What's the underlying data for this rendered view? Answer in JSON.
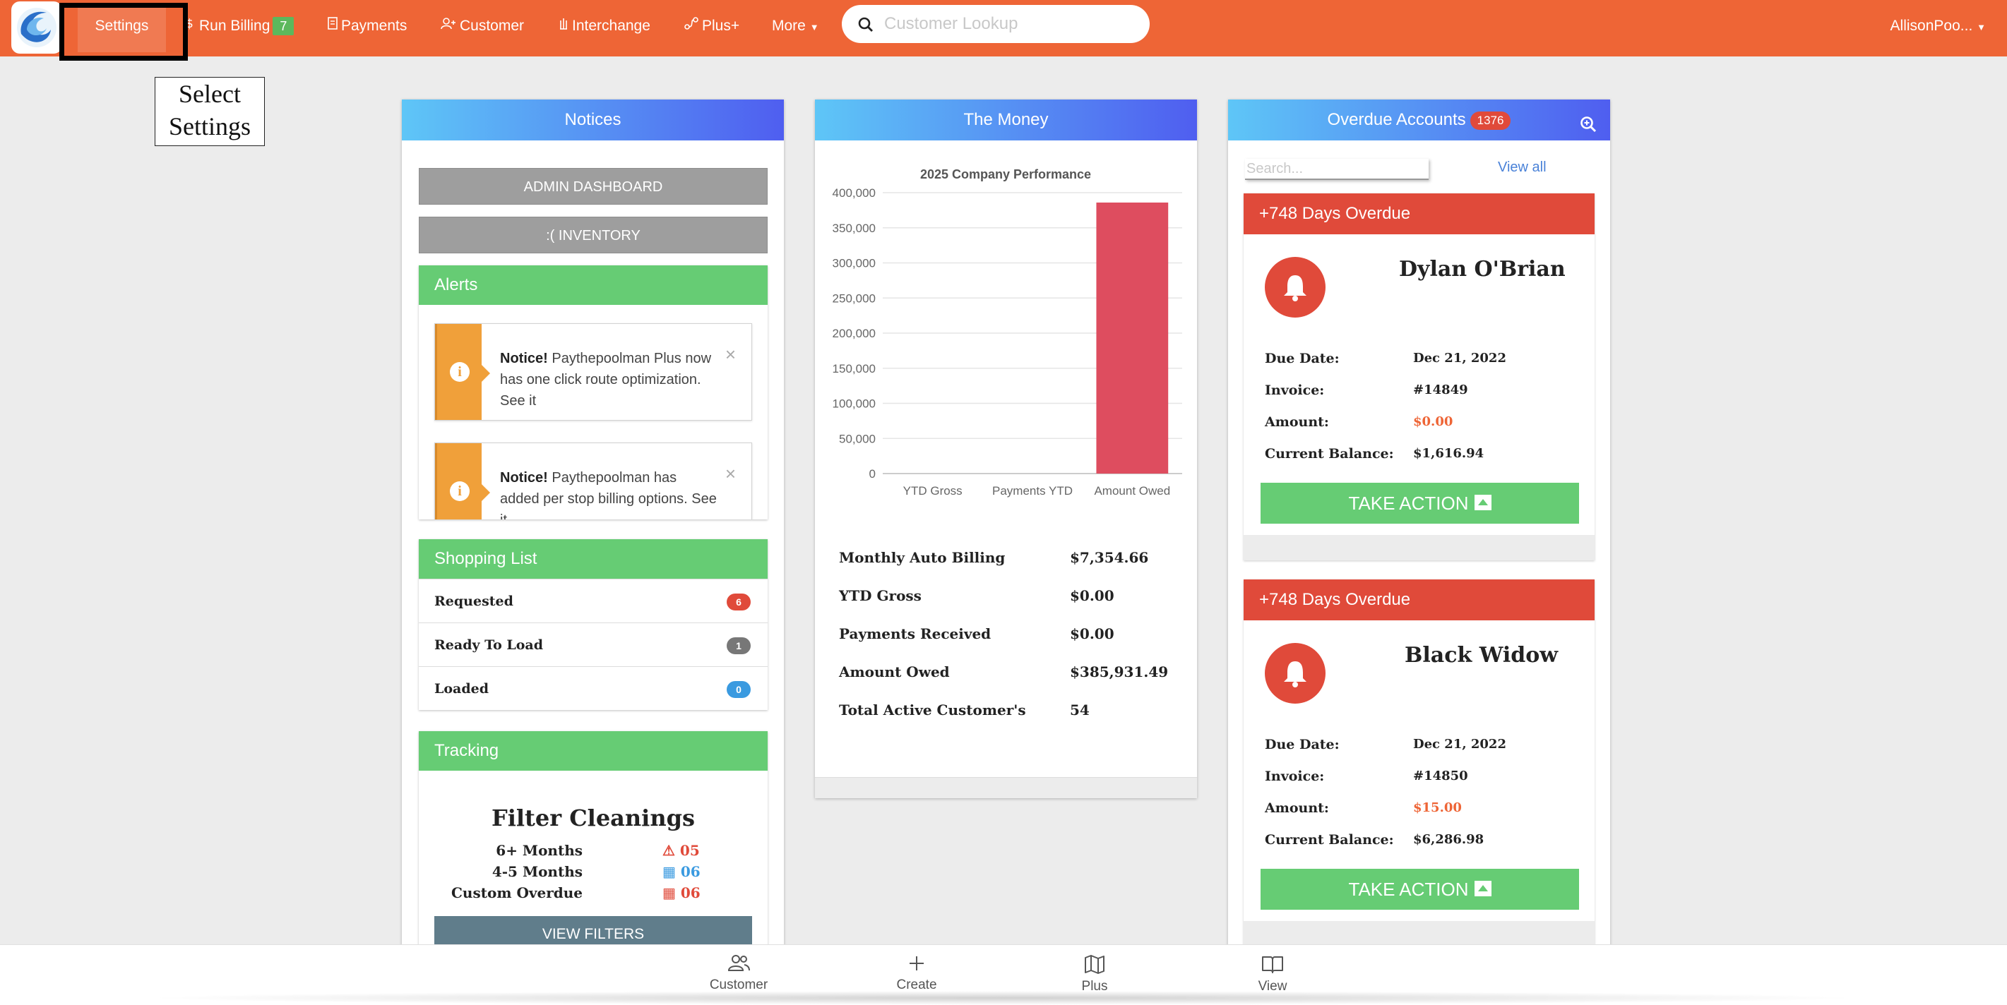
{
  "nav": {
    "settings": "Settings",
    "run_billing": "Run Billing",
    "run_billing_count": "7",
    "payments": "Payments",
    "customer": "Customer",
    "interchange": "Interchange",
    "plus": "Plus+",
    "more": "More",
    "search_placeholder": "Customer Lookup",
    "user": "AllisonPoo..."
  },
  "callout": {
    "line1": "Select",
    "line2": "Settings"
  },
  "notices": {
    "title": "Notices",
    "admin_button": "ADMIN DASHBOARD",
    "inventory_button": ":( INVENTORY",
    "alerts_title": "Alerts",
    "alerts": [
      {
        "strong": "Notice!",
        "text": " Paythepoolman Plus now has one click route optimization. See it"
      },
      {
        "strong": "Notice!",
        "text": " Paythepoolman has added per stop billing options. See it"
      }
    ],
    "shopping_title": "Shopping List",
    "shopping": [
      {
        "label": "Requested",
        "count": "6",
        "color": "#e04a3a"
      },
      {
        "label": "Ready To Load",
        "count": "1",
        "color": "#777777"
      },
      {
        "label": "Loaded",
        "count": "0",
        "color": "#3a9ae0"
      }
    ],
    "tracking_title": "Tracking",
    "tracking_heading": "Filter Cleanings",
    "tracking_rows": [
      {
        "label": "6+ Months",
        "value": "05",
        "icon": "warning-icon",
        "color": "#e04a3a"
      },
      {
        "label": "4-5 Months",
        "value": "06",
        "icon": "calendar-icon",
        "color": "#3a9ae0"
      },
      {
        "label": "Custom Overdue",
        "value": "06",
        "icon": "calendar-icon",
        "color": "#e04a3a"
      }
    ],
    "view_filters": "VIEW FILTERS"
  },
  "money": {
    "title": "The Money",
    "rows": [
      {
        "label": "Monthly Auto Billing",
        "value": "$7,354.66"
      },
      {
        "label": "YTD Gross",
        "value": "$0.00"
      },
      {
        "label": "Payments Received",
        "value": "$0.00"
      },
      {
        "label": "Amount Owed",
        "value": "$385,931.49"
      },
      {
        "label": "Total Active Customer's",
        "value": "54"
      }
    ]
  },
  "chart_data": {
    "type": "bar",
    "title": "2025 Company Performance",
    "categories": [
      "YTD Gross",
      "Payments YTD",
      "Amount Owed"
    ],
    "values": [
      0,
      0,
      385931.49
    ],
    "ylim": [
      0,
      400000
    ],
    "yticks": [
      0,
      50000,
      100000,
      150000,
      200000,
      250000,
      300000,
      350000,
      400000
    ],
    "bar_color": "#de4d5f",
    "grid": true
  },
  "overdue": {
    "title": "Overdue Accounts",
    "count": "1376",
    "search_placeholder": "Search...",
    "view_all": "View all",
    "labels": {
      "due": "Due Date:",
      "invoice": "Invoice:",
      "amount": "Amount:",
      "balance": "Current Balance:"
    },
    "take_action": "TAKE ACTION",
    "cards": [
      {
        "header": "+748 Days Overdue",
        "name": "Dylan O'Brian",
        "due": "Dec 21, 2022",
        "invoice": "#14849",
        "amount": "$0.00",
        "balance": "$1,616.94"
      },
      {
        "header": "+748 Days Overdue",
        "name": "Black Widow",
        "due": "Dec 21, 2022",
        "invoice": "#14850",
        "amount": "$15.00",
        "balance": "$6,286.98"
      }
    ]
  },
  "bottom": {
    "customer": "Customer",
    "create": "Create",
    "plus": "Plus",
    "view": "View"
  },
  "colors": {
    "brand": "#ee6536",
    "success": "#66cc74",
    "danger": "#e04a3a",
    "warning": "#f0a03a"
  }
}
